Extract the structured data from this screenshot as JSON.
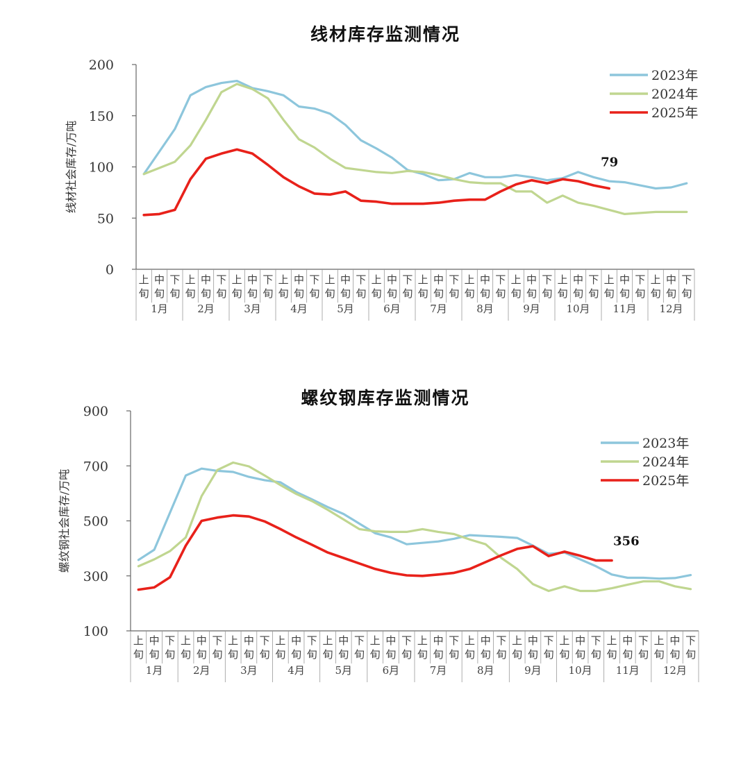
{
  "chart_data": [
    {
      "type": "line",
      "title": "线材库存监测情况",
      "ylabel": "线材社会库存/万吨",
      "ylim": [
        0,
        200
      ],
      "yticks": [
        0,
        50,
        100,
        150,
        200
      ],
      "x_sub_labels": [
        "上旬",
        "中旬",
        "下旬"
      ],
      "months": [
        "1月",
        "2月",
        "3月",
        "4月",
        "5月",
        "6月",
        "7月",
        "8月",
        "9月",
        "10月",
        "11月",
        "12月"
      ],
      "legend_position": "top-right",
      "series": [
        {
          "name": "2023年",
          "color": "#8dc6dc",
          "values": [
            93,
            115,
            137,
            170,
            178,
            182,
            184,
            177,
            174,
            170,
            159,
            157,
            152,
            141,
            126,
            118,
            109,
            97,
            93,
            87,
            88,
            94,
            90,
            90,
            92,
            90,
            87,
            89,
            95,
            90,
            86,
            85,
            82,
            79,
            80,
            84
          ]
        },
        {
          "name": "2024年",
          "color": "#c0d690",
          "values": [
            93,
            99,
            105,
            121,
            146,
            173,
            181,
            176,
            167,
            146,
            127,
            119,
            108,
            99,
            97,
            95,
            94,
            96,
            95,
            92,
            88,
            85,
            84,
            84,
            76,
            76,
            65,
            72,
            65,
            62,
            58,
            54,
            55,
            56,
            56,
            56
          ]
        },
        {
          "name": "2025年",
          "color": "#e8211a",
          "values": [
            53,
            54,
            58,
            88,
            108,
            113,
            117,
            113,
            102,
            90,
            81,
            74,
            73,
            76,
            67,
            66,
            64,
            64,
            64,
            65,
            67,
            68,
            68,
            76,
            83,
            87,
            84,
            88,
            86,
            82,
            79
          ]
        }
      ],
      "end_label": "79"
    },
    {
      "type": "line",
      "title": "螺纹钢库存监测情况",
      "ylabel": "螺纹钢社会库存/万吨",
      "ylim": [
        100,
        900
      ],
      "yticks": [
        100,
        300,
        500,
        700,
        900
      ],
      "x_sub_labels": [
        "上旬",
        "中旬",
        "下旬"
      ],
      "months": [
        "1月",
        "2月",
        "3月",
        "4月",
        "5月",
        "6月",
        "7月",
        "8月",
        "9月",
        "10月",
        "11月",
        "12月"
      ],
      "legend_position": "top-right",
      "series": [
        {
          "name": "2023年",
          "color": "#8dc6dc",
          "values": [
            358,
            395,
            530,
            665,
            690,
            682,
            678,
            660,
            648,
            640,
            605,
            578,
            550,
            525,
            490,
            455,
            440,
            415,
            420,
            425,
            435,
            448,
            445,
            442,
            438,
            410,
            380,
            385,
            360,
            335,
            305,
            293,
            293,
            290,
            292,
            303
          ]
        },
        {
          "name": "2024年",
          "color": "#c0d690",
          "values": [
            335,
            360,
            390,
            440,
            590,
            685,
            712,
            698,
            665,
            630,
            598,
            572,
            540,
            505,
            470,
            462,
            460,
            460,
            470,
            460,
            452,
            432,
            415,
            365,
            325,
            270,
            245,
            262,
            245,
            245,
            255,
            268,
            280,
            280,
            262,
            252
          ]
        },
        {
          "name": "2025年",
          "color": "#e8211a",
          "values": [
            250,
            258,
            295,
            410,
            500,
            512,
            520,
            516,
            498,
            470,
            440,
            413,
            385,
            365,
            345,
            325,
            311,
            302,
            300,
            305,
            311,
            325,
            350,
            375,
            398,
            408,
            372,
            388,
            373,
            356,
            356
          ]
        }
      ],
      "end_label": "356"
    }
  ]
}
